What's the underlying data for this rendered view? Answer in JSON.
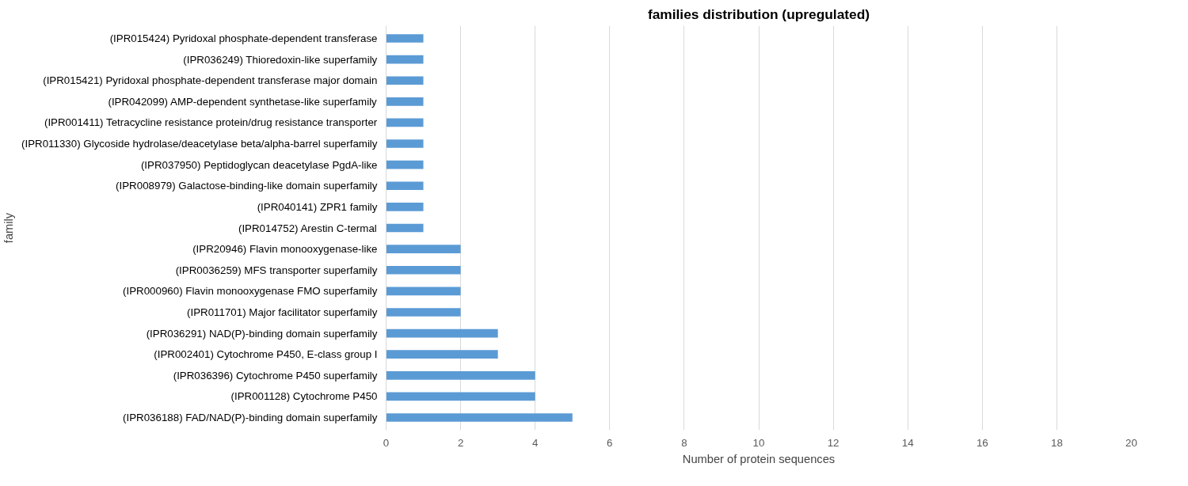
{
  "chart_data": {
    "type": "bar",
    "orientation": "horizontal",
    "title": "families distribution (upregulated)",
    "xlabel": "Number of protein sequences",
    "ylabel": "family",
    "categories": [
      "(IPR015424) Pyridoxal phosphate-dependent transferase",
      "(IPR036249) Thioredoxin-like superfamily",
      "(IPR015421) Pyridoxal phosphate-dependent transferase major domain",
      "(IPR042099) AMP-dependent synthetase-like superfamily",
      "(IPR001411) Tetracycline resistance protein/drug resistance transporter",
      "(IPR011330) Glycoside hydrolase/deacetylase beta/alpha-barrel superfamily",
      "(IPR037950) Peptidoglycan deacetylase PgdA-like",
      "(IPR008979) Galactose-binding-like domain superfamily",
      "(IPR040141) ZPR1 family",
      "(IPR014752) Arestin C-termal",
      "(IPR20946) Flavin monooxygenase-like",
      "(IPR0036259) MFS transporter superfamily",
      "(IPR000960) Flavin monooxygenase FMO superfamily",
      "(IPR011701) Major facilitator superfamily",
      "(IPR036291) NAD(P)-binding domain superfamily",
      "(IPR002401) Cytochrome P450, E-class group I",
      "(IPR036396) Cytochrome P450 superfamily",
      "(IPR001128) Cytochrome P450",
      "(IPR036188) FAD/NAD(P)-binding domain superfamily"
    ],
    "values": [
      1,
      1,
      1,
      1,
      1,
      1,
      1,
      1,
      1,
      1,
      2,
      2,
      2,
      2,
      3,
      3,
      4,
      4,
      5
    ],
    "color": "#5b9bd5",
    "xlim": [
      0,
      20
    ],
    "xticks": [
      0,
      2,
      4,
      6,
      8,
      10,
      12,
      14,
      16,
      18,
      20
    ],
    "grid": "x"
  }
}
